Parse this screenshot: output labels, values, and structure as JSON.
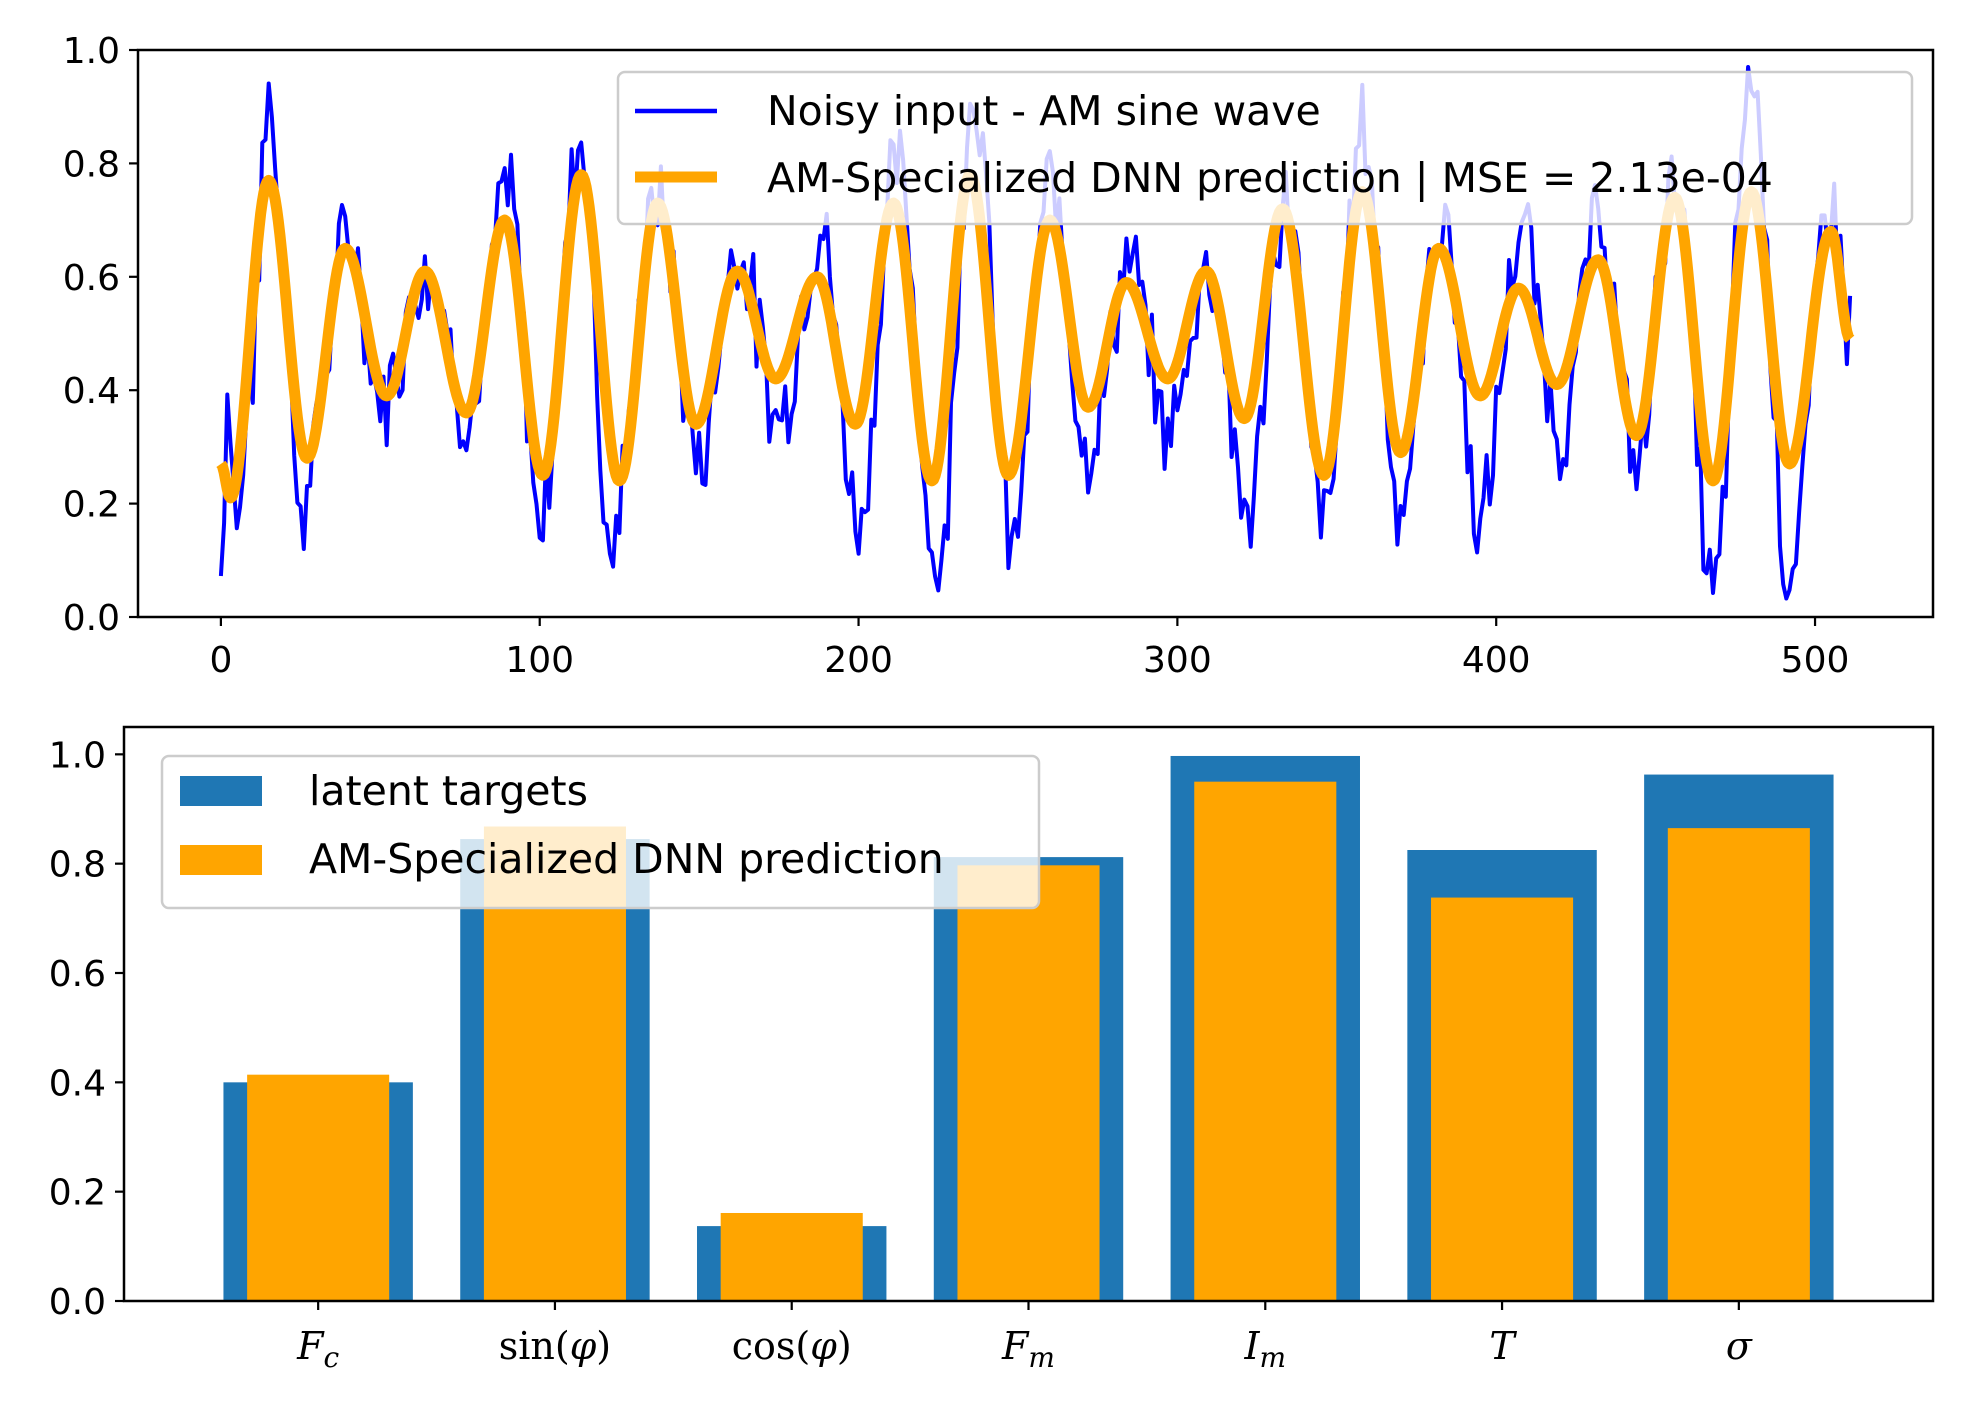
{
  "chart_data": [
    {
      "type": "line",
      "xlim": [
        -26,
        537
      ],
      "ylim": [
        0,
        1
      ],
      "xticks": [
        "0",
        "100",
        "200",
        "300",
        "400",
        "500"
      ],
      "yticks": [
        "0.0",
        "0.2",
        "0.4",
        "0.6",
        "0.8",
        "1.0"
      ],
      "grid": false,
      "legend_location": "top-right",
      "series": [
        {
          "name": "Noisy input - AM sine wave",
          "color": "#0000ff",
          "description": "512 noisy samples; AM sine wave with additive noise, values ranging ~0.04–0.96",
          "x_range": [
            0,
            511
          ],
          "sampled_values": [
            {
              "x": 0,
              "y": 0.07
            },
            {
              "x": 2,
              "y": 0.4
            },
            {
              "x": 5,
              "y": 0.17
            },
            {
              "x": 10,
              "y": 0.45
            },
            {
              "x": 14,
              "y": 0.85
            },
            {
              "x": 15,
              "y": 0.93
            },
            {
              "x": 20,
              "y": 0.6
            },
            {
              "x": 25,
              "y": 0.15
            },
            {
              "x": 28,
              "y": 0.3
            },
            {
              "x": 40,
              "y": 0.67
            },
            {
              "x": 50,
              "y": 0.38
            },
            {
              "x": 65,
              "y": 0.62
            },
            {
              "x": 78,
              "y": 0.35
            },
            {
              "x": 90,
              "y": 0.76
            },
            {
              "x": 100,
              "y": 0.18
            },
            {
              "x": 113,
              "y": 0.85
            },
            {
              "x": 122,
              "y": 0.12
            },
            {
              "x": 137,
              "y": 0.73
            },
            {
              "x": 150,
              "y": 0.28
            },
            {
              "x": 162,
              "y": 0.65
            },
            {
              "x": 175,
              "y": 0.35
            },
            {
              "x": 188,
              "y": 0.68
            },
            {
              "x": 200,
              "y": 0.17
            },
            {
              "x": 212,
              "y": 0.8
            },
            {
              "x": 225,
              "y": 0.07
            },
            {
              "x": 236,
              "y": 0.93
            },
            {
              "x": 248,
              "y": 0.13
            },
            {
              "x": 260,
              "y": 0.76
            },
            {
              "x": 272,
              "y": 0.3
            },
            {
              "x": 285,
              "y": 0.62
            },
            {
              "x": 297,
              "y": 0.33
            },
            {
              "x": 310,
              "y": 0.62
            },
            {
              "x": 322,
              "y": 0.18
            },
            {
              "x": 334,
              "y": 0.73
            },
            {
              "x": 346,
              "y": 0.17
            },
            {
              "x": 358,
              "y": 0.86
            },
            {
              "x": 370,
              "y": 0.2
            },
            {
              "x": 383,
              "y": 0.71
            },
            {
              "x": 395,
              "y": 0.17
            },
            {
              "x": 408,
              "y": 0.68
            },
            {
              "x": 420,
              "y": 0.32
            },
            {
              "x": 432,
              "y": 0.7
            },
            {
              "x": 444,
              "y": 0.27
            },
            {
              "x": 456,
              "y": 0.78
            },
            {
              "x": 468,
              "y": 0.04
            },
            {
              "x": 480,
              "y": 0.96
            },
            {
              "x": 492,
              "y": 0.07
            },
            {
              "x": 505,
              "y": 0.75
            },
            {
              "x": 511,
              "y": 0.5
            }
          ]
        },
        {
          "name": "AM-Specialized DNN prediction | MSE = 2.13e-04",
          "color": "#ffa500",
          "x_range": [
            0,
            511
          ],
          "description": "smooth AM sine wave with a local extremum roughly every 12 samples",
          "sampled_values": [
            {
              "x": 0,
              "y": 0.27
            },
            {
              "x": 3,
              "y": 0.21
            },
            {
              "x": 15,
              "y": 0.77
            },
            {
              "x": 27,
              "y": 0.28
            },
            {
              "x": 39,
              "y": 0.65
            },
            {
              "x": 52,
              "y": 0.39
            },
            {
              "x": 64,
              "y": 0.61
            },
            {
              "x": 77,
              "y": 0.36
            },
            {
              "x": 89,
              "y": 0.7
            },
            {
              "x": 101,
              "y": 0.25
            },
            {
              "x": 113,
              "y": 0.78
            },
            {
              "x": 125,
              "y": 0.24
            },
            {
              "x": 137,
              "y": 0.73
            },
            {
              "x": 149,
              "y": 0.34
            },
            {
              "x": 162,
              "y": 0.61
            },
            {
              "x": 174,
              "y": 0.42
            },
            {
              "x": 187,
              "y": 0.6
            },
            {
              "x": 199,
              "y": 0.34
            },
            {
              "x": 211,
              "y": 0.73
            },
            {
              "x": 223,
              "y": 0.24
            },
            {
              "x": 235,
              "y": 0.78
            },
            {
              "x": 247,
              "y": 0.25
            },
            {
              "x": 260,
              "y": 0.7
            },
            {
              "x": 272,
              "y": 0.37
            },
            {
              "x": 284,
              "y": 0.59
            },
            {
              "x": 297,
              "y": 0.42
            },
            {
              "x": 309,
              "y": 0.61
            },
            {
              "x": 321,
              "y": 0.35
            },
            {
              "x": 333,
              "y": 0.72
            },
            {
              "x": 346,
              "y": 0.25
            },
            {
              "x": 358,
              "y": 0.75
            },
            {
              "x": 370,
              "y": 0.29
            },
            {
              "x": 382,
              "y": 0.65
            },
            {
              "x": 395,
              "y": 0.39
            },
            {
              "x": 407,
              "y": 0.58
            },
            {
              "x": 419,
              "y": 0.41
            },
            {
              "x": 432,
              "y": 0.63
            },
            {
              "x": 444,
              "y": 0.32
            },
            {
              "x": 456,
              "y": 0.74
            },
            {
              "x": 468,
              "y": 0.24
            },
            {
              "x": 480,
              "y": 0.75
            },
            {
              "x": 492,
              "y": 0.27
            },
            {
              "x": 505,
              "y": 0.68
            },
            {
              "x": 511,
              "y": 0.49
            }
          ]
        }
      ]
    },
    {
      "type": "bar",
      "categories": [
        "F_c",
        "sin(φ)",
        "cos(φ)",
        "F_m",
        "I_m",
        "T",
        "σ"
      ],
      "ylim": [
        0,
        1.05
      ],
      "yticks": [
        "0.0",
        "0.2",
        "0.4",
        "0.6",
        "0.8",
        "1.0"
      ],
      "grid": false,
      "legend_location": "top-left",
      "series": [
        {
          "name": "latent targets",
          "color": "#1f77b4",
          "values": [
            0.4,
            0.845,
            0.137,
            0.812,
            0.997,
            0.825,
            0.963
          ]
        },
        {
          "name": "AM-Specialized DNN prediction",
          "color": "#ffa500",
          "values": [
            0.414,
            0.868,
            0.161,
            0.797,
            0.95,
            0.738,
            0.865
          ]
        }
      ]
    }
  ]
}
